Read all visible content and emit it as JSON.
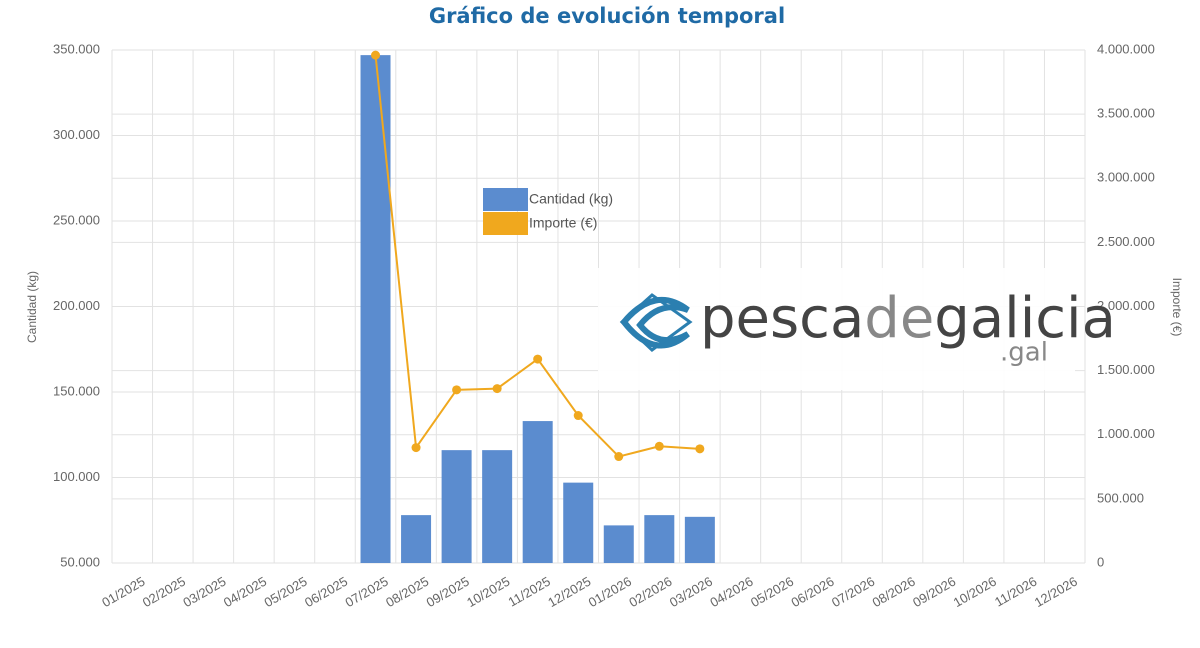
{
  "chart_data": {
    "type": "bar-line",
    "title": "Gráfico de evolución temporal",
    "y_label": "Cantidad   (kg)",
    "y2_label": "Importe (€)",
    "watermark": [
      "pesca",
      "de",
      "galicia"
    ],
    "watermark_suffix": ".gal",
    "categories": [
      "01/2025",
      "02/2025",
      "03/2025",
      "04/2025",
      "05/2025",
      "06/2025",
      "07/2025",
      "08/2025",
      "09/2025",
      "10/2025",
      "11/2025",
      "12/2025",
      "01/2026",
      "02/2026",
      "03/2026",
      "04/2026",
      "05/2026",
      "06/2026",
      "07/2026",
      "08/2026",
      "09/2026",
      "10/2026",
      "11/2026",
      "12/2026"
    ],
    "series": [
      {
        "name": "Cantidad   (kg)",
        "type": "bar",
        "color": "#5b8ccf",
        "values": [
          null,
          null,
          null,
          null,
          null,
          null,
          347000,
          78000,
          116000,
          116000,
          133000,
          97000,
          72000,
          78000,
          77000,
          null,
          null,
          null,
          null,
          null,
          null,
          null,
          null,
          null
        ]
      },
      {
        "name": "Importe (€)",
        "type": "line",
        "axis": "y2",
        "color": "#f0a81e",
        "values": [
          null,
          null,
          null,
          null,
          null,
          null,
          3960000,
          900000,
          1350000,
          1360000,
          1590000,
          1150000,
          830000,
          910000,
          890000,
          null,
          null,
          null,
          null,
          null,
          null,
          null,
          null,
          null
        ]
      }
    ],
    "ylim": [
      50000,
      350000
    ],
    "yticks": [
      {
        "value": 50000,
        "label": "50.000"
      },
      {
        "value": 100000,
        "label": "100.000"
      },
      {
        "value": 150000,
        "label": "150.000"
      },
      {
        "value": 200000,
        "label": "200.000"
      },
      {
        "value": 250000,
        "label": "250.000"
      },
      {
        "value": 300000,
        "label": "300.000"
      },
      {
        "value": 350000,
        "label": "350.000"
      }
    ],
    "y2lim": [
      0,
      4000000
    ],
    "y2ticks": [
      0,
      {
        "value": 500000,
        "label": "500.000"
      },
      {
        "value": 1000000,
        "label": "1.000.000"
      },
      {
        "value": 1500000,
        "label": "1.500.000"
      },
      {
        "value": 2000000,
        "label": "2.000.000"
      },
      {
        "value": 2500000,
        "label": "2.500.000"
      },
      {
        "value": 3000000,
        "label": "3.000.000"
      },
      {
        "value": 3500000,
        "label": "3.500.000"
      },
      {
        "value": 4000000,
        "label": "4.000.000"
      }
    ],
    "grid": true
  }
}
